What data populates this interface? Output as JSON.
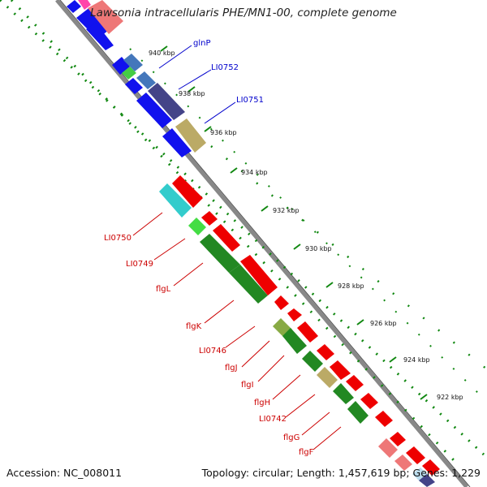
{
  "title": "Lawsonia intracellularis PHE/MN1-00, complete genome",
  "footer": {
    "accession": "Accession: NC_008011",
    "summary": "Topology: circular; Length: 1,457,619 bp; Genes: 1,229"
  },
  "ticks": [
    "940 kbp",
    "938 kbp",
    "936 kbp",
    "934 kbp",
    "932 kbp",
    "930 kbp",
    "928 kbp",
    "926 kbp",
    "924 kbp",
    "922 kbp"
  ],
  "outer_labels": [
    "glnP",
    "LI0752",
    "LI0751"
  ],
  "inner_labels": [
    "LI0750",
    "LI0749",
    "flgL",
    "flgK",
    "LI0746",
    "flgJ",
    "flgI",
    "flgH",
    "LI0742",
    "flgG",
    "flgF"
  ],
  "colors": {
    "cds_red": "#ee0000",
    "cds_blue": "#1111ee",
    "label_red": "#cc0000",
    "label_blue": "#0000cc",
    "gc_green": "#118811",
    "ruler": "#888888"
  }
}
